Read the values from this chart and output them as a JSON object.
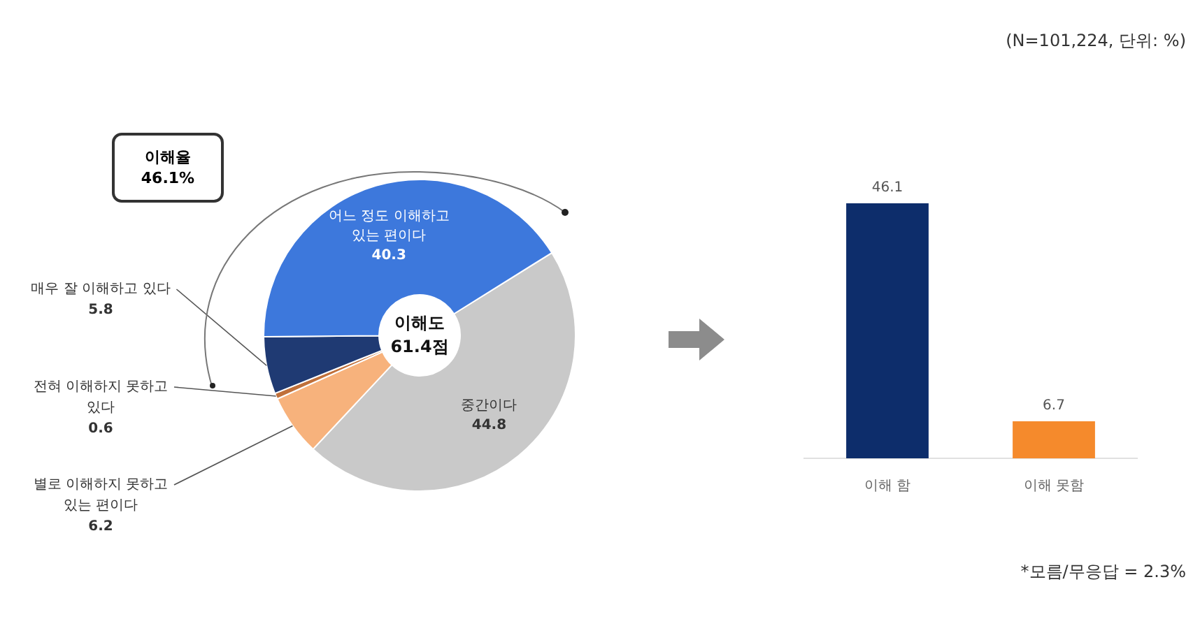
{
  "chart_data": [
    {
      "type": "donut",
      "categories": [
        "중간이다",
        "별로 이해하지 못하고 있는 편이다",
        "전혀 이해하지 못하고 있다",
        "매우 잘 이해하고 있다",
        "어느 정도 이해하고 있는 편이다"
      ],
      "values": [
        44.8,
        6.2,
        0.6,
        5.8,
        40.3
      ],
      "colors": [
        "#c9c9c9",
        "#f7b27c",
        "#c0703a",
        "#1f3a73",
        "#3d78dc"
      ],
      "data_labels": true,
      "legend": false,
      "annotations": [
        "이해율 46.1%",
        "이해도 61.4점"
      ]
    },
    {
      "type": "bar",
      "categories": [
        "이해 함",
        "이해 못함"
      ],
      "values": [
        46.1,
        6.7
      ],
      "colors": [
        "#0d2d6b",
        "#f58a2c"
      ],
      "data_labels": true,
      "legend": false,
      "grid": false,
      "annotations": [
        "(N=101,224, 단위: %)",
        "*모름/무응답 = 2.3%"
      ]
    }
  ]
}
